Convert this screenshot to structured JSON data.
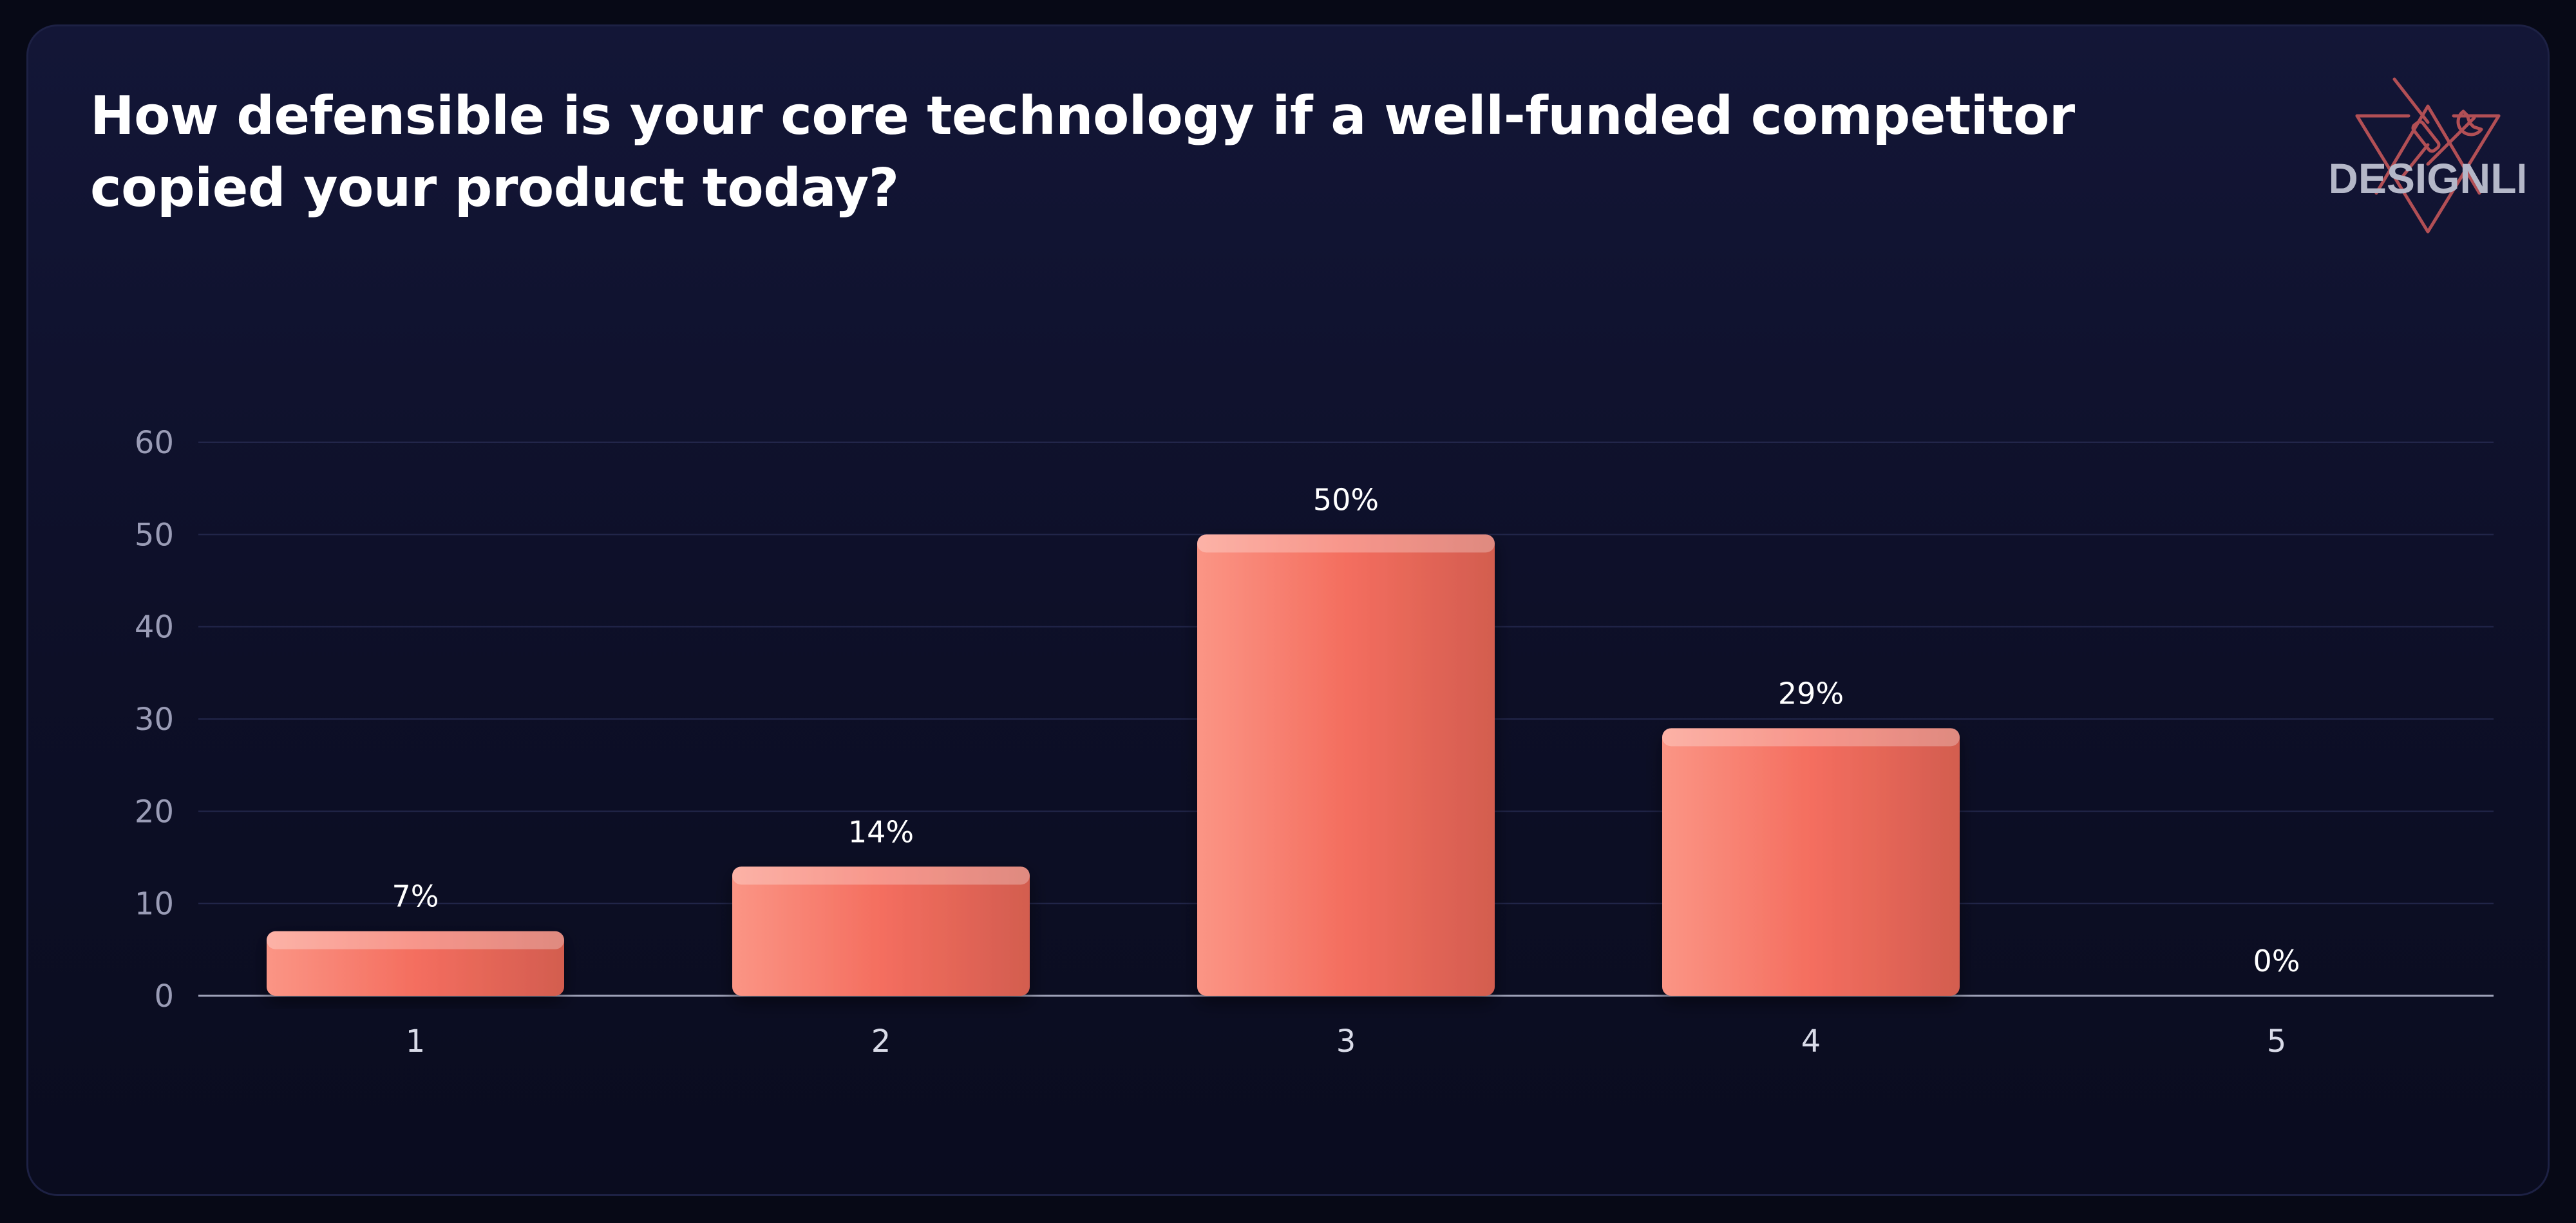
{
  "brand": {
    "name": "DESIGNLI",
    "accent_color": "#c0565a"
  },
  "chart_data": {
    "type": "bar",
    "title": "How defensible is your core technology if a well-funded competitor copied your product today?",
    "categories": [
      "1",
      "2",
      "3",
      "4",
      "5"
    ],
    "values": [
      7,
      14,
      50,
      29,
      0
    ],
    "data_labels": [
      "7%",
      "14%",
      "50%",
      "29%",
      "0%"
    ],
    "yticks": [
      "0",
      "10",
      "20",
      "30",
      "40",
      "50",
      "60"
    ],
    "ylim": [
      0,
      60
    ],
    "xlabel": "",
    "ylabel": "",
    "grid": true,
    "legend": "none",
    "bar_color_start": "#fb9585",
    "bar_color_mid": "#f46e5f",
    "bar_color_end": "#d35d4f"
  }
}
